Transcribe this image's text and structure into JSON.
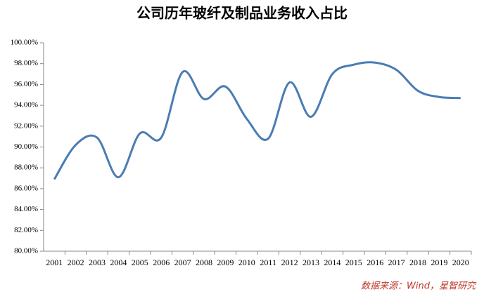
{
  "chart_data": {
    "type": "line",
    "title": "公司历年玻纤及制品业务收入占比",
    "categories": [
      "2001",
      "2002",
      "2003",
      "2004",
      "2005",
      "2006",
      "2007",
      "2008",
      "2009",
      "2010",
      "2011",
      "2012",
      "2013",
      "2014",
      "2015",
      "2016",
      "2017",
      "2018",
      "2019",
      "2020"
    ],
    "series": [
      {
        "name": "玻纤及制品业务收入占比",
        "color": "#4a7cb3",
        "values": [
          86.9,
          90.2,
          90.9,
          87.1,
          91.3,
          90.9,
          97.2,
          94.6,
          95.8,
          92.7,
          90.8,
          96.2,
          92.9,
          97.0,
          97.9,
          98.1,
          97.4,
          95.4,
          94.8,
          94.7
        ]
      }
    ],
    "ylim": [
      80,
      100
    ],
    "yticks": [
      {
        "value": 80,
        "label": "80.00%"
      },
      {
        "value": 82,
        "label": "82.00%"
      },
      {
        "value": 84,
        "label": "84.00%"
      },
      {
        "value": 86,
        "label": "86.00%"
      },
      {
        "value": 88,
        "label": "88.00%"
      },
      {
        "value": 90,
        "label": "90.00%"
      },
      {
        "value": 92,
        "label": "92.00%"
      },
      {
        "value": 94,
        "label": "94.00%"
      },
      {
        "value": 96,
        "label": "96.00%"
      },
      {
        "value": 98,
        "label": "98.00%"
      },
      {
        "value": 100,
        "label": "100.00%"
      }
    ],
    "smooth": true,
    "source": "数据来源：Wind，星智研究"
  }
}
